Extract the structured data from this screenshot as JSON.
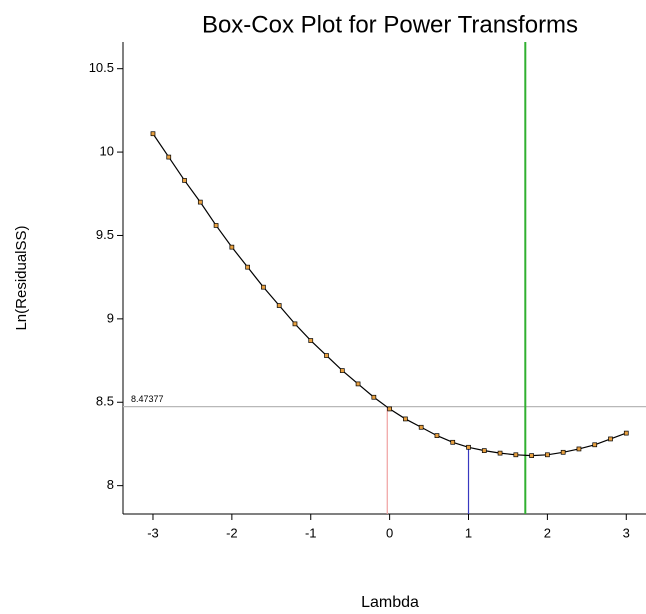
{
  "chart_data": {
    "type": "line",
    "title": "Box-Cox Plot for Power Transforms",
    "xlabel": "Lambda",
    "ylabel": "Ln(ResidualSS)",
    "x": [
      -3,
      -2.8,
      -2.6,
      -2.4,
      -2.2,
      -2,
      -1.8,
      -1.6,
      -1.4,
      -1.2,
      -1,
      -0.8,
      -0.6,
      -0.4,
      -0.2,
      0,
      0.2,
      0.4,
      0.6,
      0.8,
      1,
      1.2,
      1.4,
      1.6,
      1.8,
      2,
      2.2,
      2.4,
      2.6,
      2.8,
      3
    ],
    "series": [
      {
        "color": "#000000",
        "marker_color": "#e8a040",
        "values": [
          10.11,
          9.97,
          9.83,
          9.7,
          9.56,
          9.43,
          9.31,
          9.19,
          9.08,
          8.97,
          8.87,
          8.78,
          8.69,
          8.61,
          8.53,
          8.46,
          8.4,
          8.35,
          8.3,
          8.26,
          8.23,
          8.21,
          8.195,
          8.185,
          8.18,
          8.185,
          8.2,
          8.22,
          8.245,
          8.28,
          8.315
        ]
      }
    ],
    "xlim": [
      -3.38,
      3.25
    ],
    "ylim": [
      7.83,
      10.66
    ],
    "xticks": [
      -3,
      -2,
      -1,
      0,
      1,
      2,
      3
    ],
    "yticks": [
      8,
      8.5,
      9,
      9.5,
      10,
      10.5
    ],
    "hline": {
      "y": 8.47377,
      "color": "#b8b8b8"
    },
    "vlines": [
      {
        "x": -0.03,
        "color": "#f0a0a0"
      },
      {
        "x": 1.0,
        "color": "#3838c0"
      },
      {
        "x": 1.72,
        "color": "#30b030",
        "span": "full"
      }
    ]
  }
}
